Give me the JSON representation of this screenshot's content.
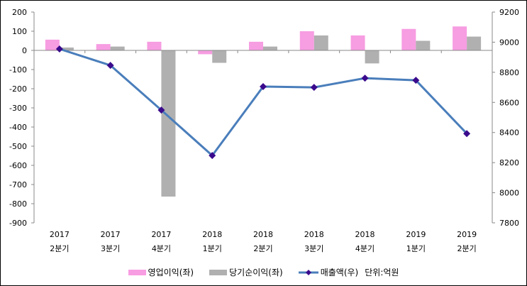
{
  "chart_data": {
    "type": "bar+line",
    "categories": [
      [
        "2017",
        "2분기"
      ],
      [
        "2017",
        "3분기"
      ],
      [
        "2017",
        "4분기"
      ],
      [
        "2018",
        "1분기"
      ],
      [
        "2018",
        "2분기"
      ],
      [
        "2018",
        "3분기"
      ],
      [
        "2018",
        "4분기"
      ],
      [
        "2019",
        "1분기"
      ],
      [
        "2019",
        "2분기"
      ]
    ],
    "series": [
      {
        "name": "영업이익(좌)",
        "type": "bar",
        "axis": "left",
        "color": "#f79de2",
        "values": [
          56,
          33,
          45,
          -20,
          45,
          100,
          78,
          112,
          125
        ]
      },
      {
        "name": "당기순이익(좌)",
        "type": "bar",
        "axis": "left",
        "color": "#b0b0b0",
        "values": [
          15,
          20,
          -763,
          -65,
          20,
          78,
          -68,
          50,
          72
        ]
      },
      {
        "name": "매출액(우)",
        "type": "line",
        "axis": "right",
        "color": "#4a7ebb",
        "marker_color": "#3a0a8c",
        "values": [
          8955,
          8846,
          8549,
          8247,
          8705,
          8700,
          8761,
          8747,
          8393
        ]
      }
    ],
    "left_axis": {
      "min": -900,
      "max": 200,
      "step": 100
    },
    "right_axis": {
      "min": 7800,
      "max": 9200,
      "step": 200
    },
    "unit_note": "단위:억원",
    "legend_position": "bottom",
    "grid": false
  }
}
